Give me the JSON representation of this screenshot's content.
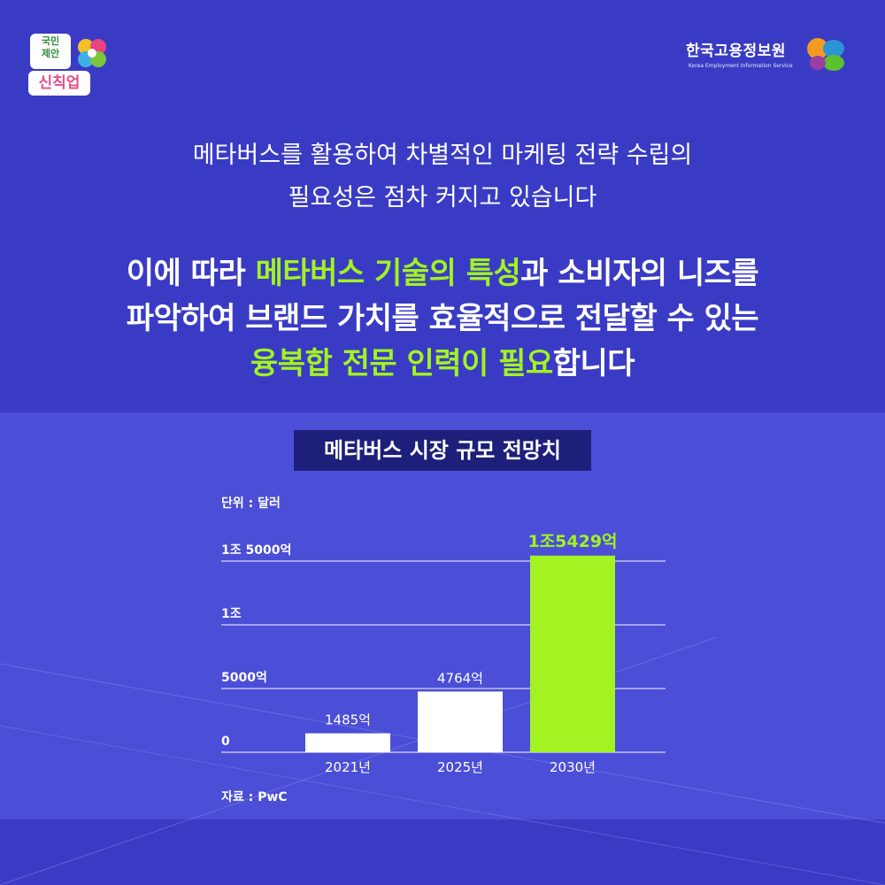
{
  "logos": {
    "left_line1": "국민",
    "left_line2": "제안",
    "left_line3": "신칙업",
    "right_name": "한국고용정보원",
    "right_eng": "Korea Employment Information Service"
  },
  "intro": {
    "line1": "메타버스를 활용하여 차별적인 마케팅 전략 수립의",
    "line2": "필요성은 점차 커지고 있습니다"
  },
  "headline": {
    "l1_a": "이에 따라 ",
    "l1_b": "메타버스 기술의 특성",
    "l1_c": "과 소비자의 니즈를",
    "l2": "파악하여 브랜드 가치를 효율적으로 전달할 수 있는",
    "l3_a": "융복합 전문 인력이 필요",
    "l3_b": "합니다"
  },
  "colors": {
    "background": "#3a3bc4",
    "panel": "#4b4ed6",
    "highlight": "#a2f321",
    "bar_default": "#ffffff",
    "title_box": "#1d1f7a"
  },
  "chart_data": {
    "type": "bar",
    "title": "메타버스 시장 규모 전망치",
    "unit_label": "단위 : 달러",
    "source": "자료 : PwC",
    "categories": [
      "2021년",
      "2025년",
      "2030년"
    ],
    "values": [
      1485,
      4764,
      15429
    ],
    "value_labels": [
      "1485억",
      "4764억",
      "1조5429억"
    ],
    "value_unit": "억 달러",
    "yticks": [
      {
        "value": 0,
        "label": "0"
      },
      {
        "value": 5000,
        "label": "5000억"
      },
      {
        "value": 10000,
        "label": "1조"
      },
      {
        "value": 15000,
        "label": "1조 5000억"
      }
    ],
    "ylim": [
      0,
      15000
    ],
    "highlight_index": 2,
    "grid": true
  }
}
